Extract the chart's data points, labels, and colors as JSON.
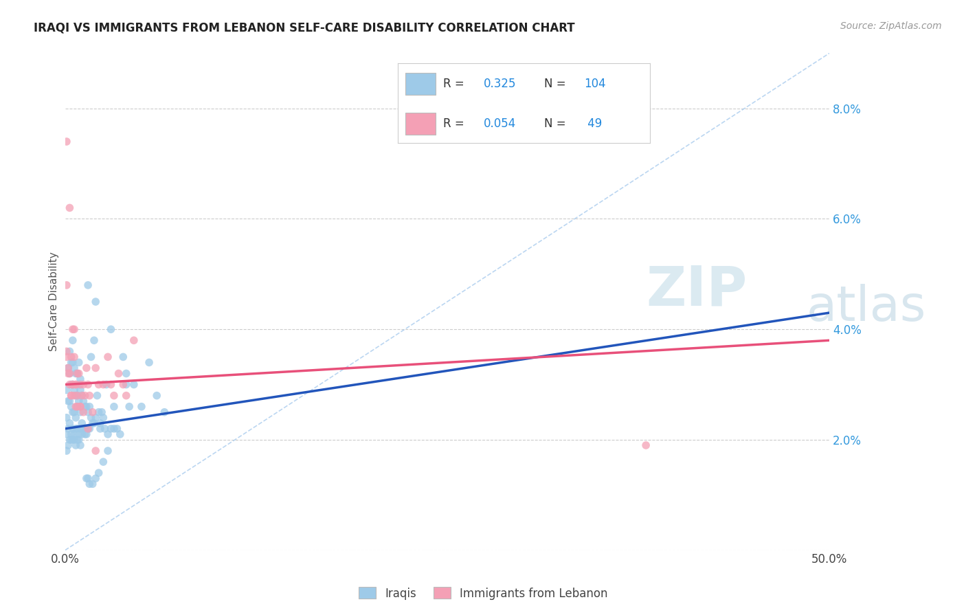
{
  "title": "IRAQI VS IMMIGRANTS FROM LEBANON SELF-CARE DISABILITY CORRELATION CHART",
  "source": "Source: ZipAtlas.com",
  "ylabel": "Self-Care Disability",
  "xlim": [
    0,
    0.5
  ],
  "ylim": [
    0,
    0.09
  ],
  "blue_R": 0.325,
  "blue_N": 104,
  "pink_R": 0.054,
  "pink_N": 49,
  "blue_color": "#9ECAE8",
  "pink_color": "#F4A0B5",
  "blue_line_color": "#2255BB",
  "pink_line_color": "#E8507A",
  "dash_line_color": "#AACCEE",
  "background_color": "#FFFFFF",
  "legend_R_color": "#2288DD",
  "legend_N_color": "#2288DD",
  "blue_x": [
    0.001,
    0.001,
    0.002,
    0.002,
    0.003,
    0.003,
    0.003,
    0.004,
    0.004,
    0.004,
    0.005,
    0.005,
    0.005,
    0.005,
    0.006,
    0.006,
    0.006,
    0.007,
    0.007,
    0.007,
    0.008,
    0.008,
    0.008,
    0.009,
    0.009,
    0.009,
    0.01,
    0.01,
    0.01,
    0.011,
    0.011,
    0.012,
    0.012,
    0.013,
    0.013,
    0.014,
    0.014,
    0.015,
    0.015,
    0.016,
    0.016,
    0.017,
    0.018,
    0.019,
    0.02,
    0.021,
    0.022,
    0.023,
    0.024,
    0.025,
    0.026,
    0.027,
    0.028,
    0.03,
    0.032,
    0.034,
    0.036,
    0.038,
    0.04,
    0.042,
    0.001,
    0.001,
    0.002,
    0.002,
    0.003,
    0.003,
    0.004,
    0.004,
    0.005,
    0.005,
    0.006,
    0.006,
    0.007,
    0.007,
    0.008,
    0.008,
    0.009,
    0.009,
    0.01,
    0.01,
    0.011,
    0.012,
    0.013,
    0.014,
    0.015,
    0.016,
    0.018,
    0.02,
    0.022,
    0.025,
    0.028,
    0.032,
    0.04,
    0.05,
    0.055,
    0.06,
    0.065,
    0.02,
    0.03,
    0.045,
    0.015,
    0.017,
    0.019,
    0.023
  ],
  "blue_y": [
    0.029,
    0.024,
    0.033,
    0.027,
    0.032,
    0.036,
    0.027,
    0.03,
    0.034,
    0.026,
    0.03,
    0.034,
    0.038,
    0.025,
    0.029,
    0.033,
    0.025,
    0.028,
    0.032,
    0.024,
    0.028,
    0.032,
    0.026,
    0.03,
    0.034,
    0.027,
    0.031,
    0.025,
    0.029,
    0.023,
    0.028,
    0.022,
    0.027,
    0.022,
    0.026,
    0.021,
    0.026,
    0.022,
    0.025,
    0.022,
    0.026,
    0.024,
    0.023,
    0.023,
    0.024,
    0.028,
    0.025,
    0.023,
    0.025,
    0.024,
    0.022,
    0.03,
    0.021,
    0.022,
    0.022,
    0.022,
    0.021,
    0.035,
    0.032,
    0.026,
    0.021,
    0.018,
    0.022,
    0.019,
    0.023,
    0.02,
    0.021,
    0.02,
    0.022,
    0.02,
    0.021,
    0.02,
    0.022,
    0.019,
    0.022,
    0.02,
    0.021,
    0.02,
    0.022,
    0.019,
    0.021,
    0.022,
    0.021,
    0.013,
    0.013,
    0.012,
    0.012,
    0.013,
    0.014,
    0.016,
    0.018,
    0.026,
    0.03,
    0.026,
    0.034,
    0.028,
    0.025,
    0.045,
    0.04,
    0.03,
    0.048,
    0.035,
    0.038,
    0.022
  ],
  "pink_x": [
    0.001,
    0.001,
    0.001,
    0.002,
    0.003,
    0.003,
    0.004,
    0.004,
    0.005,
    0.005,
    0.006,
    0.006,
    0.007,
    0.007,
    0.008,
    0.008,
    0.009,
    0.01,
    0.01,
    0.011,
    0.012,
    0.013,
    0.014,
    0.015,
    0.016,
    0.018,
    0.02,
    0.022,
    0.025,
    0.028,
    0.03,
    0.032,
    0.035,
    0.038,
    0.04,
    0.045,
    0.38,
    0.001,
    0.002,
    0.003,
    0.004,
    0.005,
    0.006,
    0.007,
    0.008,
    0.01,
    0.012,
    0.015,
    0.02
  ],
  "pink_y": [
    0.074,
    0.048,
    0.036,
    0.033,
    0.062,
    0.032,
    0.035,
    0.028,
    0.04,
    0.03,
    0.04,
    0.028,
    0.03,
    0.026,
    0.032,
    0.028,
    0.032,
    0.03,
    0.026,
    0.028,
    0.03,
    0.028,
    0.033,
    0.03,
    0.028,
    0.025,
    0.033,
    0.03,
    0.03,
    0.035,
    0.03,
    0.028,
    0.032,
    0.03,
    0.028,
    0.038,
    0.019,
    0.035,
    0.032,
    0.03,
    0.028,
    0.03,
    0.035,
    0.03,
    0.026,
    0.026,
    0.025,
    0.022,
    0.018
  ],
  "blue_trend": [
    0.0,
    0.5,
    0.022,
    0.043
  ],
  "pink_trend": [
    0.0,
    0.5,
    0.03,
    0.038
  ]
}
